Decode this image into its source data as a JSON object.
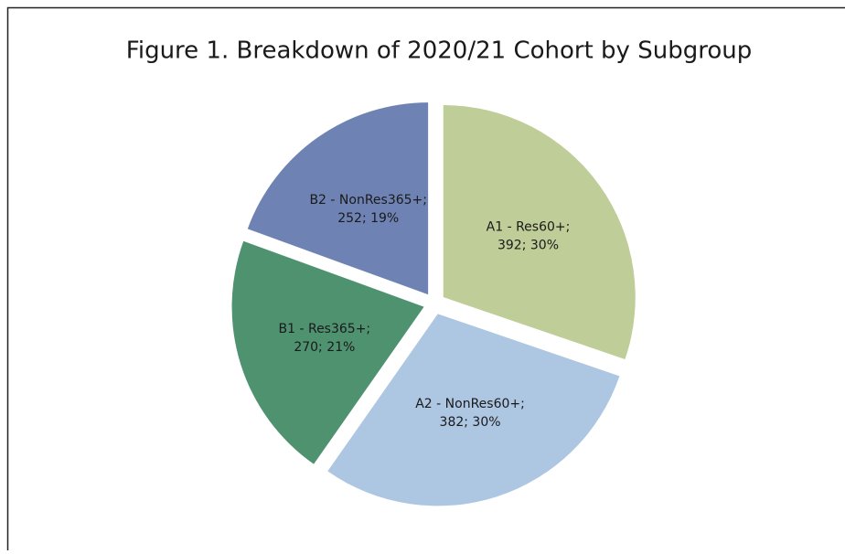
{
  "chart_data": {
    "type": "pie",
    "title": "Figure 1. Breakdown of 2020/21 Cohort by Subgroup",
    "categories": [
      "A1 - Res60+;",
      "A2 - NonRes60+;",
      "B1 - Res365+;",
      "B2 - NonRes365+;"
    ],
    "values": [
      392,
      382,
      270,
      252
    ],
    "value_labels": [
      "392; 30%",
      "382; 30%",
      "270; 21%",
      "252; 19%"
    ],
    "colors": [
      "#bfcd98",
      "#adc6e2",
      "#4e9270",
      "#6e82b3"
    ]
  }
}
